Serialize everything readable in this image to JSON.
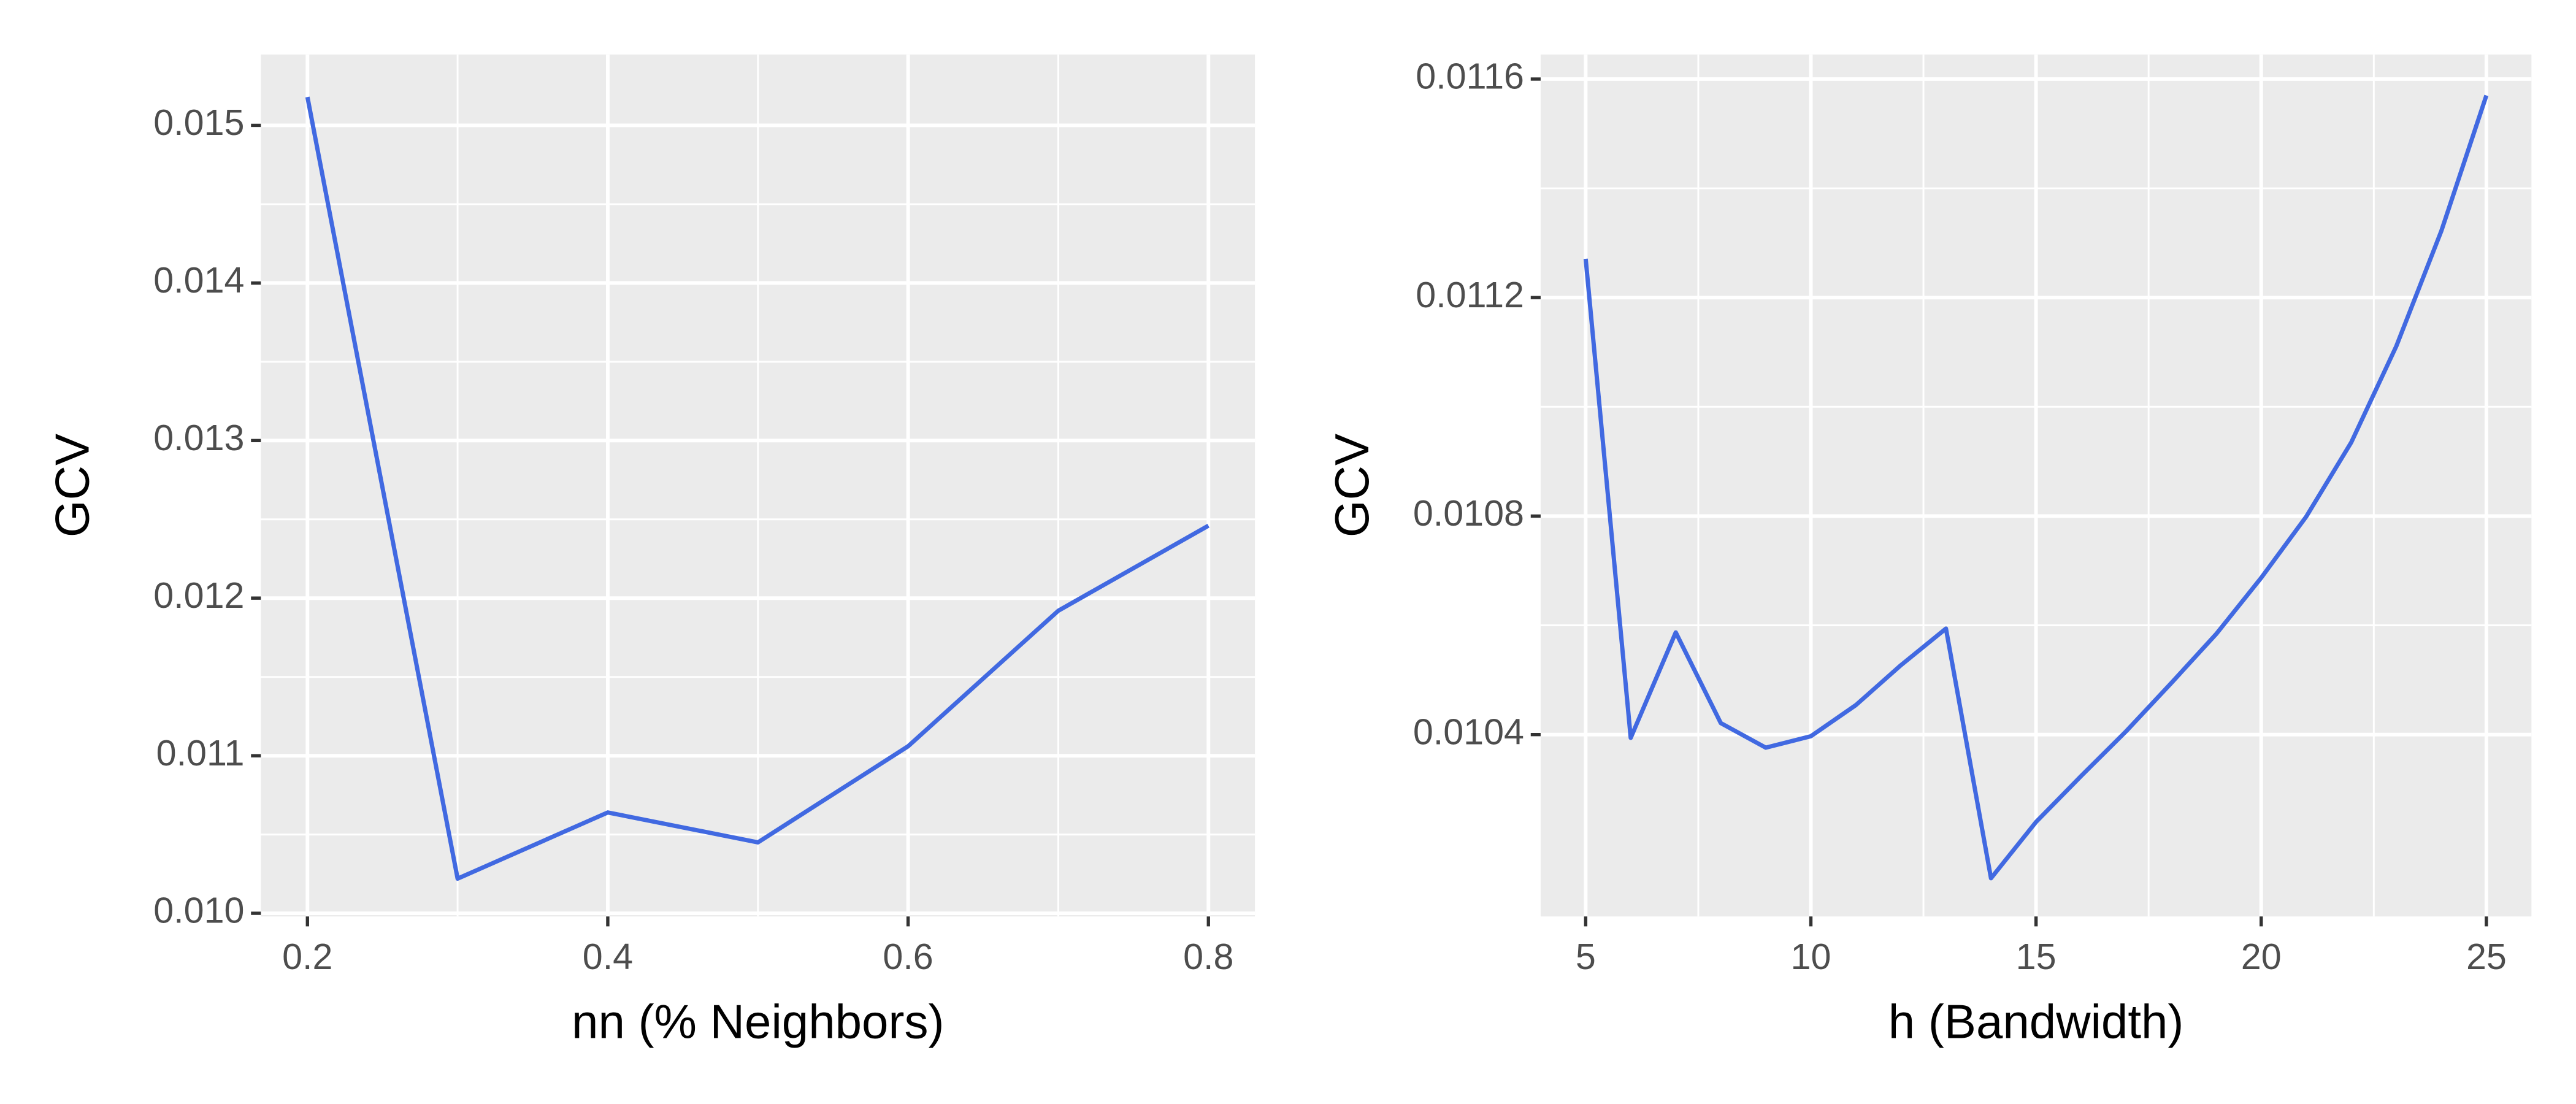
{
  "chart_data": [
    {
      "type": "line",
      "xlabel": "nn (% Neighbors)",
      "ylabel": "GCV",
      "x": [
        0.2,
        0.3,
        0.4,
        0.5,
        0.6,
        0.7,
        0.8
      ],
      "values": [
        0.01518,
        0.01022,
        0.01064,
        0.01045,
        0.01106,
        0.01192,
        0.01246
      ],
      "color": "#4169e1",
      "xlim": [
        0.169,
        0.831
      ],
      "xticks": [
        0.2,
        0.4,
        0.6,
        0.8
      ],
      "ylim": [
        0.00998,
        0.01545
      ],
      "yticks": [
        {
          "value": 0.01,
          "label": "0.010"
        },
        0.011,
        0.012,
        0.013,
        0.014,
        0.015
      ],
      "grid": true
    },
    {
      "type": "line",
      "xlabel": "h (Bandwidth)",
      "ylabel": "GCV",
      "x": [
        5,
        6,
        7,
        8,
        9,
        10,
        11,
        12,
        13,
        14,
        15,
        16,
        17,
        18,
        19,
        20,
        21,
        22,
        23,
        24,
        25
      ],
      "values": [
        0.011271,
        0.010394,
        0.010587,
        0.010421,
        0.010376,
        0.010397,
        0.010454,
        0.010527,
        0.010594,
        0.010137,
        0.01024,
        0.010324,
        0.010406,
        0.010494,
        0.010584,
        0.010687,
        0.010799,
        0.010935,
        0.011111,
        0.011322,
        0.01157
      ],
      "color": "#4169e1",
      "xlim": [
        4,
        26
      ],
      "xticks": [
        5,
        10,
        15,
        20,
        25
      ],
      "ylim": [
        0.010067,
        0.011645
      ],
      "yticks": [
        0.0104,
        0.0108,
        0.0112,
        0.0116
      ],
      "grid": true
    }
  ]
}
